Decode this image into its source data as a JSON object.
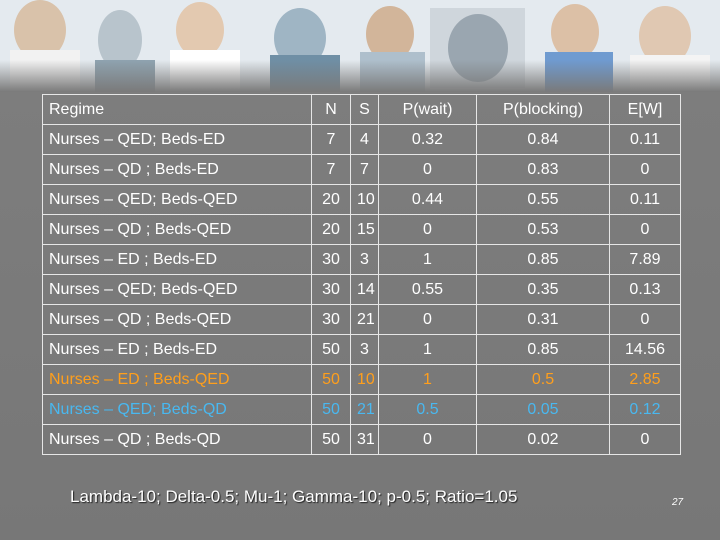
{
  "table": {
    "headers": [
      "Regime",
      "N",
      "S",
      "P(wait)",
      "P(blocking)",
      "E[W]"
    ],
    "rows": [
      {
        "regime": "Nurses – QED; Beds-ED",
        "n": "7",
        "s": "4",
        "p_wait": "0.32",
        "p_blocking": "0.84",
        "ew": "0.11"
      },
      {
        "regime": "Nurses – QD ; Beds-ED",
        "n": "7",
        "s": "7",
        "p_wait": "0",
        "p_blocking": "0.83",
        "ew": "0"
      },
      {
        "regime": "Nurses – QED; Beds-QED",
        "n": "20",
        "s": "10",
        "p_wait": "0.44",
        "p_blocking": "0.55",
        "ew": "0.11"
      },
      {
        "regime": "Nurses – QD ; Beds-QED",
        "n": "20",
        "s": "15",
        "p_wait": "0",
        "p_blocking": "0.53",
        "ew": "0"
      },
      {
        "regime": "Nurses – ED ; Beds-ED",
        "n": "30",
        "s": "3",
        "p_wait": "1",
        "p_blocking": "0.85",
        "ew": "7.89"
      },
      {
        "regime": "Nurses – QED; Beds-QED",
        "n": "30",
        "s": "14",
        "p_wait": "0.55",
        "p_blocking": "0.35",
        "ew": "0.13"
      },
      {
        "regime": "Nurses – QD ; Beds-QED",
        "n": "30",
        "s": "21",
        "p_wait": "0",
        "p_blocking": "0.31",
        "ew": "0"
      },
      {
        "regime": "Nurses – ED ; Beds-ED",
        "n": "50",
        "s": "3",
        "p_wait": "1",
        "p_blocking": "0.85",
        "ew": "14.56"
      },
      {
        "regime": "Nurses – ED ; Beds-QED",
        "n": "50",
        "s": "10",
        "p_wait": "1",
        "p_blocking": "0.5",
        "ew": "2.85"
      },
      {
        "regime": "Nurses – QED; Beds-QD",
        "n": "50",
        "s": "21",
        "p_wait": "0.5",
        "p_blocking": "0.05",
        "ew": "0.12"
      },
      {
        "regime": "Nurses – QD ; Beds-QD",
        "n": "50",
        "s": "31",
        "p_wait": "0",
        "p_blocking": "0.02",
        "ew": "0"
      }
    ]
  },
  "colors": {
    "highlight_orange": "#ff9f1c",
    "highlight_blue": "#49b8f0",
    "text": "#ffffff",
    "background": "#7a7a7a"
  },
  "footer": {
    "parameters": "Lambda-10; Delta-0.5; Mu-1; Gamma-10; p-0.5; Ratio=1.05",
    "page_number": "27"
  }
}
